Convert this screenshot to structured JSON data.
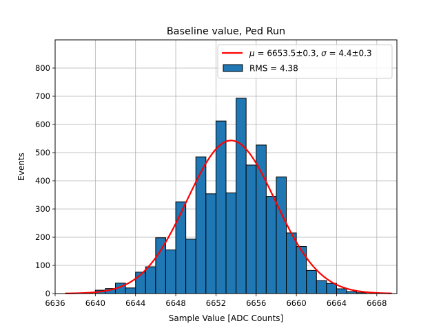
{
  "chart_data": {
    "type": "bar",
    "title": "Baseline value, Ped Run",
    "xlabel": "Sample Value [ADC Counts]",
    "ylabel": "Events",
    "xlim": [
      6636,
      6670
    ],
    "ylim": [
      0,
      900
    ],
    "xticks": [
      6636,
      6640,
      6644,
      6648,
      6652,
      6656,
      6660,
      6664,
      6668
    ],
    "yticks": [
      0,
      100,
      200,
      300,
      400,
      500,
      600,
      700,
      800
    ],
    "grid": true,
    "legend_position": "top-right",
    "bar_color": "#1f77b4",
    "fit_color": "#ff0000",
    "histogram": {
      "name": "RMS = 4.38",
      "bin_width": 1,
      "bins": [
        {
          "x0": 6640,
          "value": 12
        },
        {
          "x0": 6641,
          "value": 18
        },
        {
          "x0": 6642,
          "value": 37
        },
        {
          "x0": 6643,
          "value": 20
        },
        {
          "x0": 6644,
          "value": 76
        },
        {
          "x0": 6645,
          "value": 95
        },
        {
          "x0": 6646,
          "value": 198
        },
        {
          "x0": 6647,
          "value": 155
        },
        {
          "x0": 6648,
          "value": 325
        },
        {
          "x0": 6649,
          "value": 193
        },
        {
          "x0": 6650,
          "value": 485
        },
        {
          "x0": 6651,
          "value": 354
        },
        {
          "x0": 6652,
          "value": 612
        },
        {
          "x0": 6653,
          "value": 357
        },
        {
          "x0": 6654,
          "value": 693
        },
        {
          "x0": 6655,
          "value": 456
        },
        {
          "x0": 6656,
          "value": 527
        },
        {
          "x0": 6657,
          "value": 345
        },
        {
          "x0": 6658,
          "value": 414
        },
        {
          "x0": 6659,
          "value": 215
        },
        {
          "x0": 6660,
          "value": 167
        },
        {
          "x0": 6661,
          "value": 82
        },
        {
          "x0": 6662,
          "value": 46
        },
        {
          "x0": 6663,
          "value": 36
        },
        {
          "x0": 6664,
          "value": 17
        },
        {
          "x0": 6665,
          "value": 7
        },
        {
          "x0": 6666,
          "value": 3
        }
      ]
    },
    "fit": {
      "type": "gaussian",
      "name_parts": [
        "μ",
        " = 6653.5±0.3, ",
        "σ",
        " = 4.4±0.3"
      ],
      "mu": 6653.5,
      "sigma": 4.4,
      "amplitude": 543,
      "x_range": [
        6637,
        6669.5
      ]
    }
  }
}
